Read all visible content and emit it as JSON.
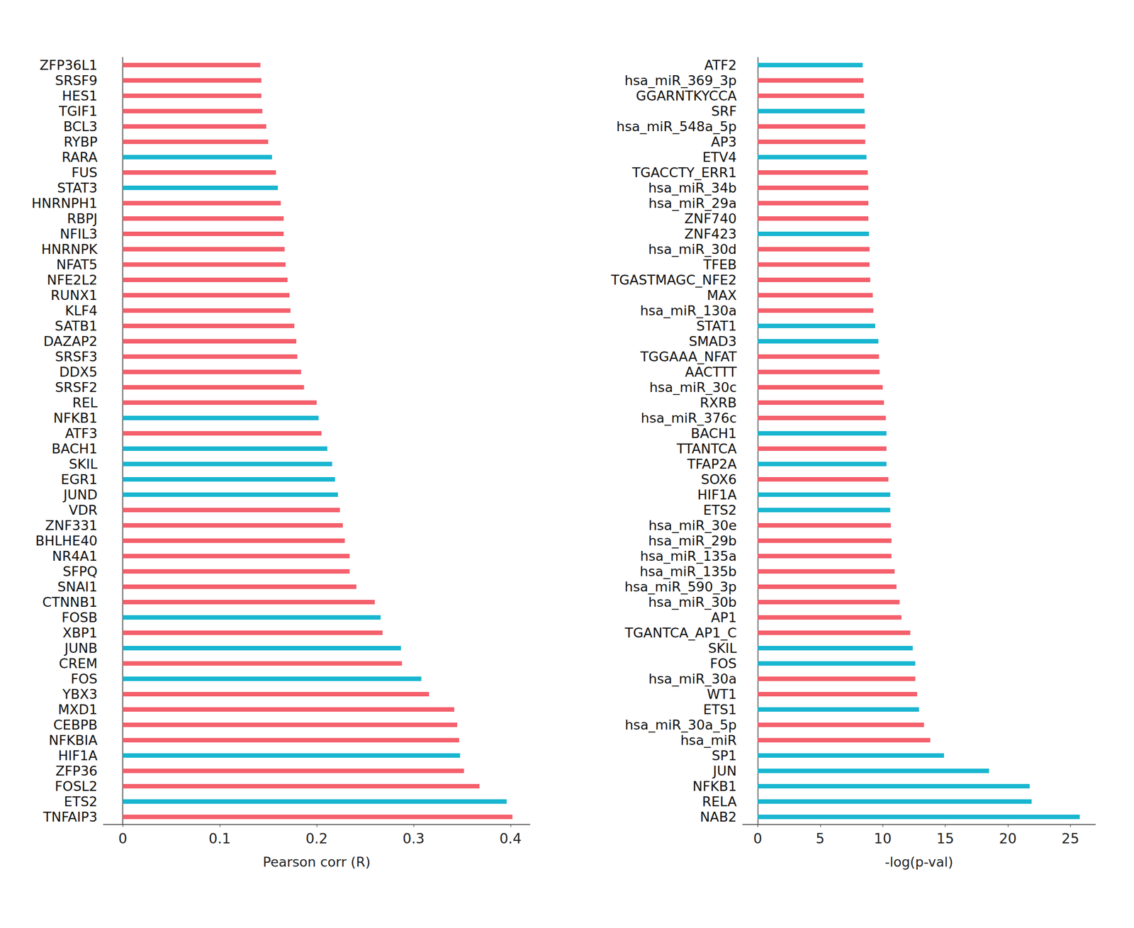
{
  "chart_data": [
    {
      "type": "bar",
      "orientation": "horizontal",
      "x_label": "Pearson corr (R)",
      "xlim": [
        -0.02,
        0.42
      ],
      "xticks": [
        0,
        0.1,
        0.2,
        0.3,
        0.4
      ],
      "grid": false,
      "categories": [
        "ZFP36L1",
        "SRSF9",
        "HES1",
        "TGIF1",
        "BCL3",
        "RYBP",
        "RARA",
        "FUS",
        "STAT3",
        "HNRNPH1",
        "RBPJ",
        "NFIL3",
        "HNRNPK",
        "NFAT5",
        "NFE2L2",
        "RUNX1",
        "KLF4",
        "SATB1",
        "DAZAP2",
        "SRSF3",
        "DDX5",
        "SRSF2",
        "REL",
        "NFKB1",
        "ATF3",
        "BACH1",
        "SKIL",
        "EGR1",
        "JUND",
        "VDR",
        "ZNF331",
        "BHLHE40",
        "NR4A1",
        "SFPQ",
        "SNAI1",
        "CTNNB1",
        "FOSB",
        "XBP1",
        "JUNB",
        "CREM",
        "FOS",
        "YBX3",
        "MXD1",
        "CEBPB",
        "NFKBIA",
        "HIF1A",
        "ZFP36",
        "FOSL2",
        "ETS2",
        "TNFAIP3"
      ],
      "values": [
        0.142,
        0.143,
        0.143,
        0.144,
        0.148,
        0.15,
        0.154,
        0.158,
        0.16,
        0.163,
        0.166,
        0.166,
        0.167,
        0.168,
        0.17,
        0.172,
        0.173,
        0.177,
        0.179,
        0.18,
        0.184,
        0.187,
        0.2,
        0.202,
        0.205,
        0.211,
        0.216,
        0.219,
        0.222,
        0.224,
        0.227,
        0.229,
        0.234,
        0.234,
        0.241,
        0.26,
        0.266,
        0.268,
        0.287,
        0.288,
        0.308,
        0.316,
        0.342,
        0.345,
        0.347,
        0.348,
        0.352,
        0.368,
        0.396,
        0.402
      ],
      "colors": [
        "#f4606c",
        "#f4606c",
        "#f4606c",
        "#f4606c",
        "#f4606c",
        "#f4606c",
        "#19b6d0",
        "#f4606c",
        "#19b6d0",
        "#f4606c",
        "#f4606c",
        "#f4606c",
        "#f4606c",
        "#f4606c",
        "#f4606c",
        "#f4606c",
        "#f4606c",
        "#f4606c",
        "#f4606c",
        "#f4606c",
        "#f4606c",
        "#f4606c",
        "#f4606c",
        "#19b6d0",
        "#f4606c",
        "#19b6d0",
        "#19b6d0",
        "#19b6d0",
        "#19b6d0",
        "#f4606c",
        "#f4606c",
        "#f4606c",
        "#f4606c",
        "#f4606c",
        "#f4606c",
        "#f4606c",
        "#19b6d0",
        "#f4606c",
        "#19b6d0",
        "#f4606c",
        "#19b6d0",
        "#f4606c",
        "#f4606c",
        "#f4606c",
        "#f4606c",
        "#19b6d0",
        "#f4606c",
        "#f4606c",
        "#19b6d0",
        "#f4606c"
      ]
    },
    {
      "type": "bar",
      "orientation": "horizontal",
      "x_label": "-log(p-val)",
      "xlim": [
        -1.2,
        27
      ],
      "xticks": [
        0,
        5,
        10,
        15,
        20,
        25
      ],
      "grid": false,
      "categories": [
        "ATF2",
        "hsa_miR_369_3p",
        "GGARNTKYCCA",
        "SRF",
        "hsa_miR_548a_5p",
        "AP3",
        "ETV4",
        "TGACCTY_ERR1",
        "hsa_miR_34b",
        "hsa_miR_29a",
        "ZNF740",
        "ZNF423",
        "hsa_miR_30d",
        "TFEB",
        "TGASTMAGC_NFE2",
        "MAX",
        "hsa_miR_130a",
        "STAT1",
        "SMAD3",
        "TGGAAA_NFAT",
        "AACTTT",
        "hsa_miR_30c",
        "RXRB",
        "hsa_miR_376c",
        "BACH1",
        "TTANTCA",
        "TFAP2A",
        "SOX6",
        "HIF1A",
        "ETS2",
        "hsa_miR_30e",
        "hsa_miR_29b",
        "hsa_miR_135a",
        "hsa_miR_135b",
        "hsa_miR_590_3p",
        "hsa_miR_30b",
        "AP1",
        "TGANTCA_AP1_C",
        "SKIL",
        "FOS",
        "hsa_miR_30a",
        "WT1",
        "ETS1",
        "hsa_miR_30a_5p",
        "hsa_miR",
        "SP1",
        "JUN",
        "NFKB1",
        "RELA",
        "NAB2"
      ],
      "values": [
        8.4,
        8.45,
        8.5,
        8.55,
        8.6,
        8.6,
        8.7,
        8.8,
        8.85,
        8.85,
        8.85,
        8.9,
        8.95,
        8.95,
        9.0,
        9.2,
        9.25,
        9.4,
        9.65,
        9.7,
        9.75,
        10.0,
        10.1,
        10.25,
        10.3,
        10.3,
        10.3,
        10.45,
        10.6,
        10.6,
        10.65,
        10.7,
        10.7,
        10.95,
        11.1,
        11.35,
        11.5,
        12.2,
        12.4,
        12.6,
        12.6,
        12.75,
        12.9,
        13.3,
        13.8,
        14.9,
        18.5,
        21.75,
        21.9,
        25.75
      ],
      "colors": [
        "#19b6d0",
        "#f4606c",
        "#f4606c",
        "#19b6d0",
        "#f4606c",
        "#f4606c",
        "#19b6d0",
        "#f4606c",
        "#f4606c",
        "#f4606c",
        "#f4606c",
        "#19b6d0",
        "#f4606c",
        "#f4606c",
        "#f4606c",
        "#f4606c",
        "#f4606c",
        "#19b6d0",
        "#19b6d0",
        "#f4606c",
        "#f4606c",
        "#f4606c",
        "#f4606c",
        "#f4606c",
        "#19b6d0",
        "#f4606c",
        "#19b6d0",
        "#f4606c",
        "#19b6d0",
        "#19b6d0",
        "#f4606c",
        "#f4606c",
        "#f4606c",
        "#f4606c",
        "#f4606c",
        "#f4606c",
        "#f4606c",
        "#f4606c",
        "#19b6d0",
        "#19b6d0",
        "#f4606c",
        "#f4606c",
        "#19b6d0",
        "#f4606c",
        "#f4606c",
        "#19b6d0",
        "#19b6d0",
        "#19b6d0",
        "#19b6d0",
        "#19b6d0"
      ]
    }
  ]
}
